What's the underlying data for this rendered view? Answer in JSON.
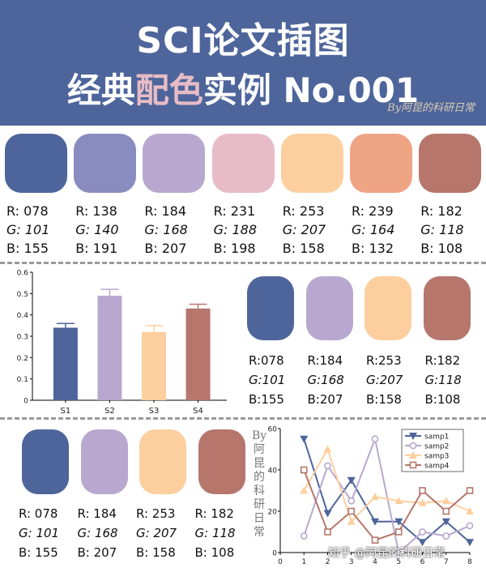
{
  "header": {
    "title_line1": "SCI论文插图",
    "title_line2_a": "经典",
    "title_line2_highlight": "配色",
    "title_line2_b": "实例 No.001",
    "signature": "By阿昆的科研日常",
    "bg_color": "#4E659B",
    "highlight_color": "#E7BCC6"
  },
  "palette_row": [
    {
      "color": "#4E659B",
      "r": "R: 078",
      "g": "G: 101",
      "b": "B: 155"
    },
    {
      "color": "#8A8CBF",
      "r": "R: 138",
      "g": "G: 140",
      "b": "B: 191"
    },
    {
      "color": "#B8A8CF",
      "r": "R: 184",
      "g": "G: 168",
      "b": "B: 207"
    },
    {
      "color": "#E7BCC6",
      "r": "R: 231",
      "g": "G: 188",
      "b": "B: 198"
    },
    {
      "color": "#FDCF9E",
      "r": "R: 253",
      "g": "G: 207",
      "b": "B: 158"
    },
    {
      "color": "#EFA484",
      "r": "R: 239",
      "g": "G: 164",
      "b": "B: 132"
    },
    {
      "color": "#B6766C",
      "r": "R: 182",
      "g": "G: 118",
      "b": "B: 108"
    }
  ],
  "bar_section": {
    "swatches": [
      {
        "color": "#4E659B",
        "r": "R:078",
        "g": "G:101",
        "b": "B:155"
      },
      {
        "color": "#B8A8CF",
        "r": "R:184",
        "g": "G:168",
        "b": "B:207"
      },
      {
        "color": "#FDCF9E",
        "r": "R:253",
        "g": "G:207",
        "b": "B:158"
      },
      {
        "color": "#B6766C",
        "r": "R:182",
        "g": "G:118",
        "b": "B:108"
      }
    ]
  },
  "line_section": {
    "swatches": [
      {
        "color": "#4E659B",
        "r": "R: 078",
        "g": "G: 101",
        "b": "B: 155"
      },
      {
        "color": "#B8A8CF",
        "r": "R: 184",
        "g": "G: 168",
        "b": "B: 207"
      },
      {
        "color": "#FDCF9E",
        "r": "R: 253",
        "g": "G: 207",
        "b": "B: 158"
      },
      {
        "color": "#B6766C",
        "r": "R: 182",
        "g": "G: 118",
        "b": "B: 108"
      }
    ],
    "vertical_signature": "By阿昆的科研日常"
  },
  "watermark": "知乎 @阿昆的科研日常",
  "chart_data": [
    {
      "type": "bar",
      "categories": [
        "S1",
        "S2",
        "S3",
        "S4"
      ],
      "values": [
        0.34,
        0.49,
        0.32,
        0.43
      ],
      "errors": [
        0.02,
        0.03,
        0.03,
        0.02
      ],
      "colors": [
        "#4E659B",
        "#B8A8CF",
        "#FDCF9E",
        "#B6766C"
      ],
      "yticks": [
        "0",
        "0.1",
        "0.2",
        "0.3",
        "0.4",
        "0.5",
        "0.6"
      ],
      "ylim": [
        0,
        0.6
      ],
      "grid": false
    },
    {
      "type": "line",
      "x": [
        1,
        2,
        3,
        4,
        5,
        6,
        7,
        8
      ],
      "xticks": [
        "0",
        "1",
        "2",
        "3",
        "4",
        "5",
        "6",
        "7",
        "8"
      ],
      "yticks": [
        "0",
        "20",
        "40",
        "60"
      ],
      "xlim": [
        0,
        8
      ],
      "ylim": [
        0,
        60
      ],
      "legend_position": "top-right",
      "series": [
        {
          "name": "samp1",
          "color": "#4E659B",
          "marker": "triangle-down",
          "values": [
            55,
            19,
            35,
            15,
            15,
            5,
            15,
            5
          ]
        },
        {
          "name": "samp2",
          "color": "#B8A8CF",
          "marker": "circle",
          "values": [
            8,
            42,
            25,
            55,
            0,
            10,
            8,
            13
          ]
        },
        {
          "name": "samp3",
          "color": "#FDCF9E",
          "marker": "triangle-up",
          "values": [
            30,
            50,
            15,
            27,
            25,
            24,
            25,
            20
          ]
        },
        {
          "name": "samp4",
          "color": "#B6766C",
          "marker": "square",
          "values": [
            40,
            10,
            20,
            6,
            10,
            30,
            20,
            30
          ]
        }
      ]
    }
  ]
}
